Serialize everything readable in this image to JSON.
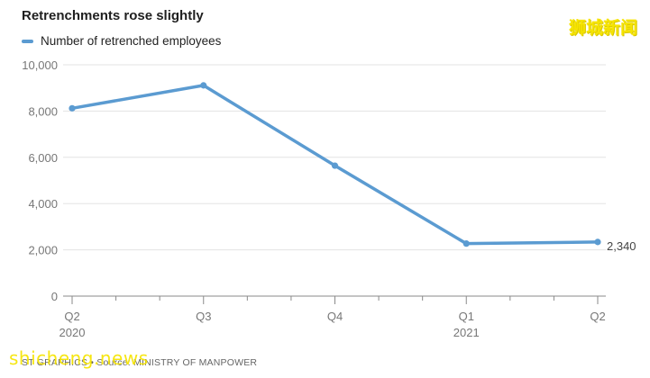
{
  "chart_data": {
    "type": "line",
    "title": "Retrenchments rose slightly",
    "categories": [
      "Q2 2020",
      "Q3",
      "Q4",
      "Q1 2021",
      "Q2"
    ],
    "x_tick_labels": [
      [
        "Q2",
        "2020"
      ],
      [
        "Q3",
        ""
      ],
      [
        "Q4",
        ""
      ],
      [
        "Q1",
        "2021"
      ],
      [
        "Q2",
        ""
      ]
    ],
    "series": [
      {
        "name": "Number of retrenched employees",
        "values": [
          8120,
          9110,
          5640,
          2270,
          2340
        ],
        "color": "#5b9bd1"
      }
    ],
    "end_label": "2,340",
    "ylim": [
      0,
      10000
    ],
    "y_ticks": [
      0,
      2000,
      4000,
      6000,
      8000,
      10000
    ],
    "y_tick_labels": [
      "0",
      "2,000",
      "4,000",
      "6,000",
      "8,000",
      "10,000"
    ],
    "grid": true,
    "legend": "top-left",
    "source": "ST GRAPHICS • Source: MINISTRY OF MANPOWER"
  },
  "watermarks": {
    "chinese": "狮城新闻",
    "english": "shicheng.news"
  }
}
